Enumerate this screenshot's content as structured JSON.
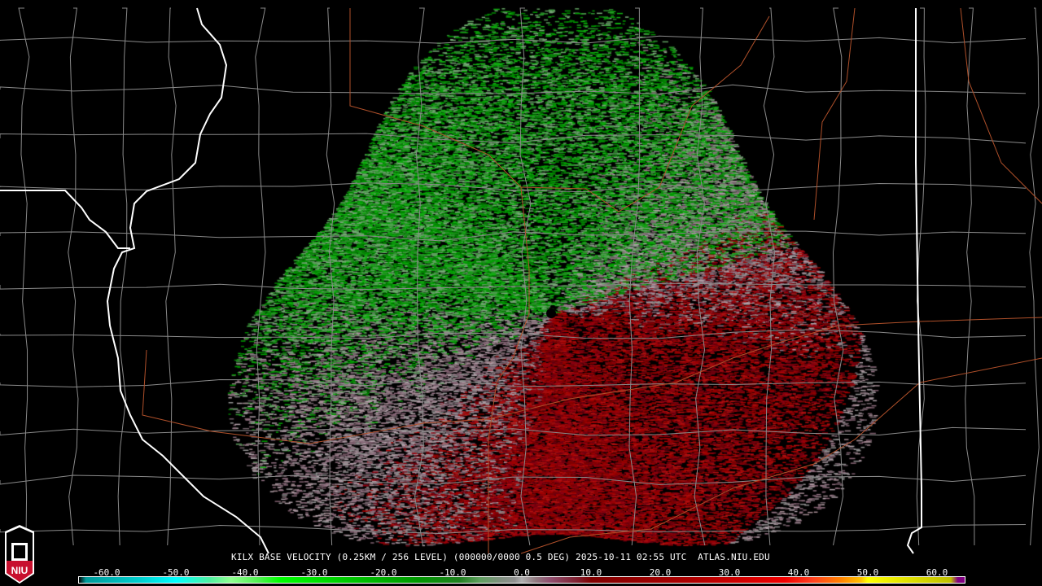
{
  "product": {
    "title": "KILX BASE VELOCITY (0.25KM / 256 LEVEL) (000000/0000 0.5 DEG) 2025-10-11 02:55 UTC  ATLAS.NIU.EDU",
    "station": "KILX",
    "timestamp": "2025-10-11 02:55 UTC",
    "source": "ATLAS.NIU.EDU"
  },
  "logo": {
    "text": "NIU",
    "colors": {
      "red": "#c8102e",
      "white": "#ffffff"
    }
  },
  "colorbar": {
    "unit_range": [
      -64,
      64
    ],
    "ticks": [
      "-60.0",
      "-50.0",
      "-40.0",
      "-30.0",
      "-20.0",
      "-10.0",
      "0.0",
      "10.0",
      "20.0",
      "30.0",
      "40.0",
      "50.0",
      "60.0"
    ],
    "tick_values": [
      -60,
      -50,
      -40,
      -30,
      -20,
      -10,
      0,
      10,
      20,
      30,
      40,
      50,
      60
    ],
    "stops": [
      {
        "v": -64,
        "c": "#000000"
      },
      {
        "v": -63,
        "c": "#009a9a"
      },
      {
        "v": -55,
        "c": "#00d0d0"
      },
      {
        "v": -50,
        "c": "#00ffff"
      },
      {
        "v": -45,
        "c": "#50f0a0"
      },
      {
        "v": -42,
        "c": "#90ff90"
      },
      {
        "v": -38,
        "c": "#50f050"
      },
      {
        "v": -35,
        "c": "#00ff00"
      },
      {
        "v": -25,
        "c": "#00c800"
      },
      {
        "v": -15,
        "c": "#009800"
      },
      {
        "v": -9,
        "c": "#208020"
      },
      {
        "v": -6,
        "c": "#60a060"
      },
      {
        "v": -3,
        "c": "#809080"
      },
      {
        "v": -1,
        "c": "#909090"
      },
      {
        "v": 0,
        "c": "#b0b0b0"
      },
      {
        "v": 2,
        "c": "#907a80"
      },
      {
        "v": 4,
        "c": "#905070"
      },
      {
        "v": 8,
        "c": "#802030"
      },
      {
        "v": 10,
        "c": "#800000"
      },
      {
        "v": 25,
        "c": "#b00000"
      },
      {
        "v": 38,
        "c": "#f00000"
      },
      {
        "v": 42,
        "c": "#ff4020"
      },
      {
        "v": 46,
        "c": "#ff8000"
      },
      {
        "v": 49,
        "c": "#ffc000"
      },
      {
        "v": 50,
        "c": "#ffff00"
      },
      {
        "v": 62,
        "c": "#c0c000"
      },
      {
        "v": 63,
        "c": "#800080"
      }
    ]
  },
  "colors": {
    "county": "#8a8a8a",
    "state": "#ffffff",
    "highway": "#b0502a",
    "inbound": "#00a000",
    "outbound": "#900000"
  }
}
